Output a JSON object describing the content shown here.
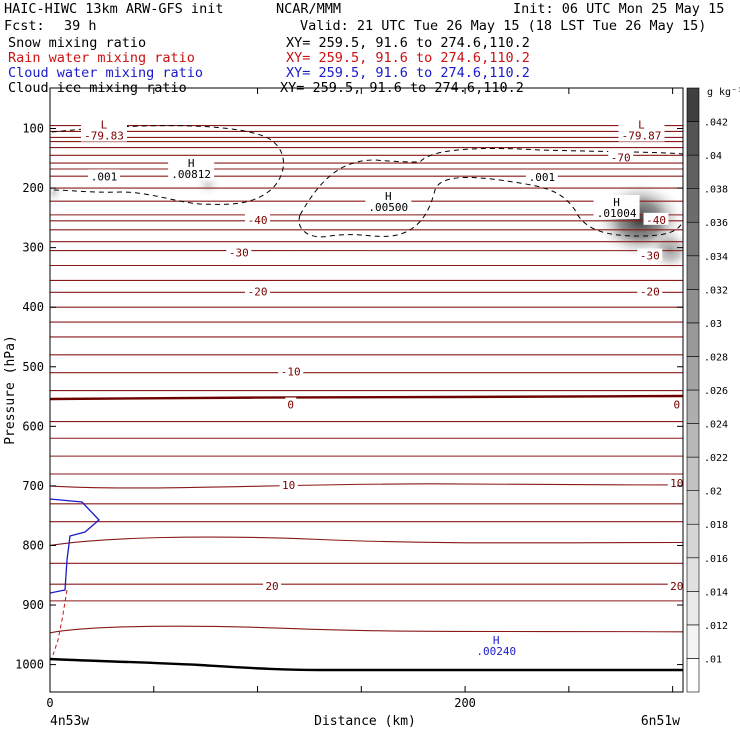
{
  "header": {
    "model": "HAIC-HIWC 13km ARW-GFS init",
    "org": "NCAR/MMM",
    "init": "Init: 06 UTC Mon 25 May 15",
    "fcst_label": "Fcst:",
    "fcst_value": "39 h",
    "valid": "Valid: 21 UTC Tue 26 May 15 (18 LST Tue 26 May 15)",
    "fields": [
      {
        "name": "Snow mixing ratio",
        "xy": "XY= 259.5, 91.6 to 274.6,110.2",
        "color": "#000000"
      },
      {
        "name": "Rain water mixing ratio",
        "xy": "XY= 259.5, 91.6 to 274.6,110.2",
        "color": "#cc1111"
      },
      {
        "name": "Cloud water mixing ratio",
        "xy": "XY= 259.5, 91.6 to 274.6,110.2",
        "color": "#1a1acc"
      },
      {
        "name": "Cloud ice mixing ratio",
        "xy": "XY= 259.5, 91.6 to 274.6,110.2",
        "color": "#000000"
      }
    ]
  },
  "chart_data": {
    "type": "heatmap",
    "xlabel": "Distance (km)",
    "ylabel": "Pressure (hPa)",
    "x_ticks": [
      0,
      200
    ],
    "xlim": [
      0,
      305
    ],
    "x_endpoints": {
      "left": "4n53w",
      "right": "6n51w"
    },
    "y_ticks": [
      100,
      200,
      300,
      400,
      500,
      600,
      700,
      800,
      900,
      1000
    ],
    "ylim": [
      1046,
      32
    ],
    "colorbar": {
      "units": "g kg⁻¹",
      "ticks": [
        ".01",
        ".012",
        ".014",
        ".016",
        ".018",
        ".02",
        ".022",
        ".024",
        ".026",
        ".028",
        ".03",
        ".032",
        ".034",
        ".036",
        ".038",
        ".04",
        ".042"
      ],
      "colors": [
        "#ffffff",
        "#f4f4f4",
        "#eaeaea",
        "#e0e0e0",
        "#d6d6d6",
        "#cccccc",
        "#c2c2c2",
        "#b8b8b8",
        "#aeaeae",
        "#a3a3a3",
        "#999999",
        "#8e8e8e",
        "#838383",
        "#787878",
        "#6c6c6c",
        "#606060",
        "#545454",
        "#404040"
      ]
    },
    "temperature_labels": [
      {
        "x": 26,
        "p": 95,
        "text": "L",
        "sub": "-79.83"
      },
      {
        "x": 285,
        "p": 95,
        "text": "L",
        "sub": "-79.87"
      },
      {
        "x": 275,
        "p": 150,
        "text": "-70"
      },
      {
        "x": 100,
        "p": 255,
        "text": "-40"
      },
      {
        "x": 292,
        "p": 255,
        "text": "-40"
      },
      {
        "x": 91,
        "p": 310,
        "text": "-30"
      },
      {
        "x": 289,
        "p": 315,
        "text": "-30"
      },
      {
        "x": 100,
        "p": 375,
        "text": "-20"
      },
      {
        "x": 289,
        "p": 375,
        "text": "-20"
      },
      {
        "x": 116,
        "p": 510,
        "text": "-10"
      },
      {
        "x": 116,
        "p": 565,
        "text": "0"
      },
      {
        "x": 302,
        "p": 565,
        "text": "0"
      },
      {
        "x": 115,
        "p": 700,
        "text": "10"
      },
      {
        "x": 302,
        "p": 697,
        "text": "10"
      },
      {
        "x": 107,
        "p": 870,
        "text": "20"
      },
      {
        "x": 302,
        "p": 870,
        "text": "20"
      }
    ],
    "ice_labels": [
      {
        "x": 26,
        "p": 182,
        "text": ".001"
      },
      {
        "x": 237,
        "p": 183,
        "text": ".001"
      },
      {
        "x": 68,
        "p": 160,
        "text": "H",
        "sub": ".00812"
      },
      {
        "x": 163,
        "p": 215,
        "text": "H",
        "sub": ".00500"
      },
      {
        "x": 273,
        "p": 225,
        "text": "H",
        "sub": ".01004"
      }
    ],
    "cloud_water_labels": [
      {
        "x": 215,
        "p": 960,
        "text": "H",
        "sub": ".00240"
      }
    ]
  }
}
